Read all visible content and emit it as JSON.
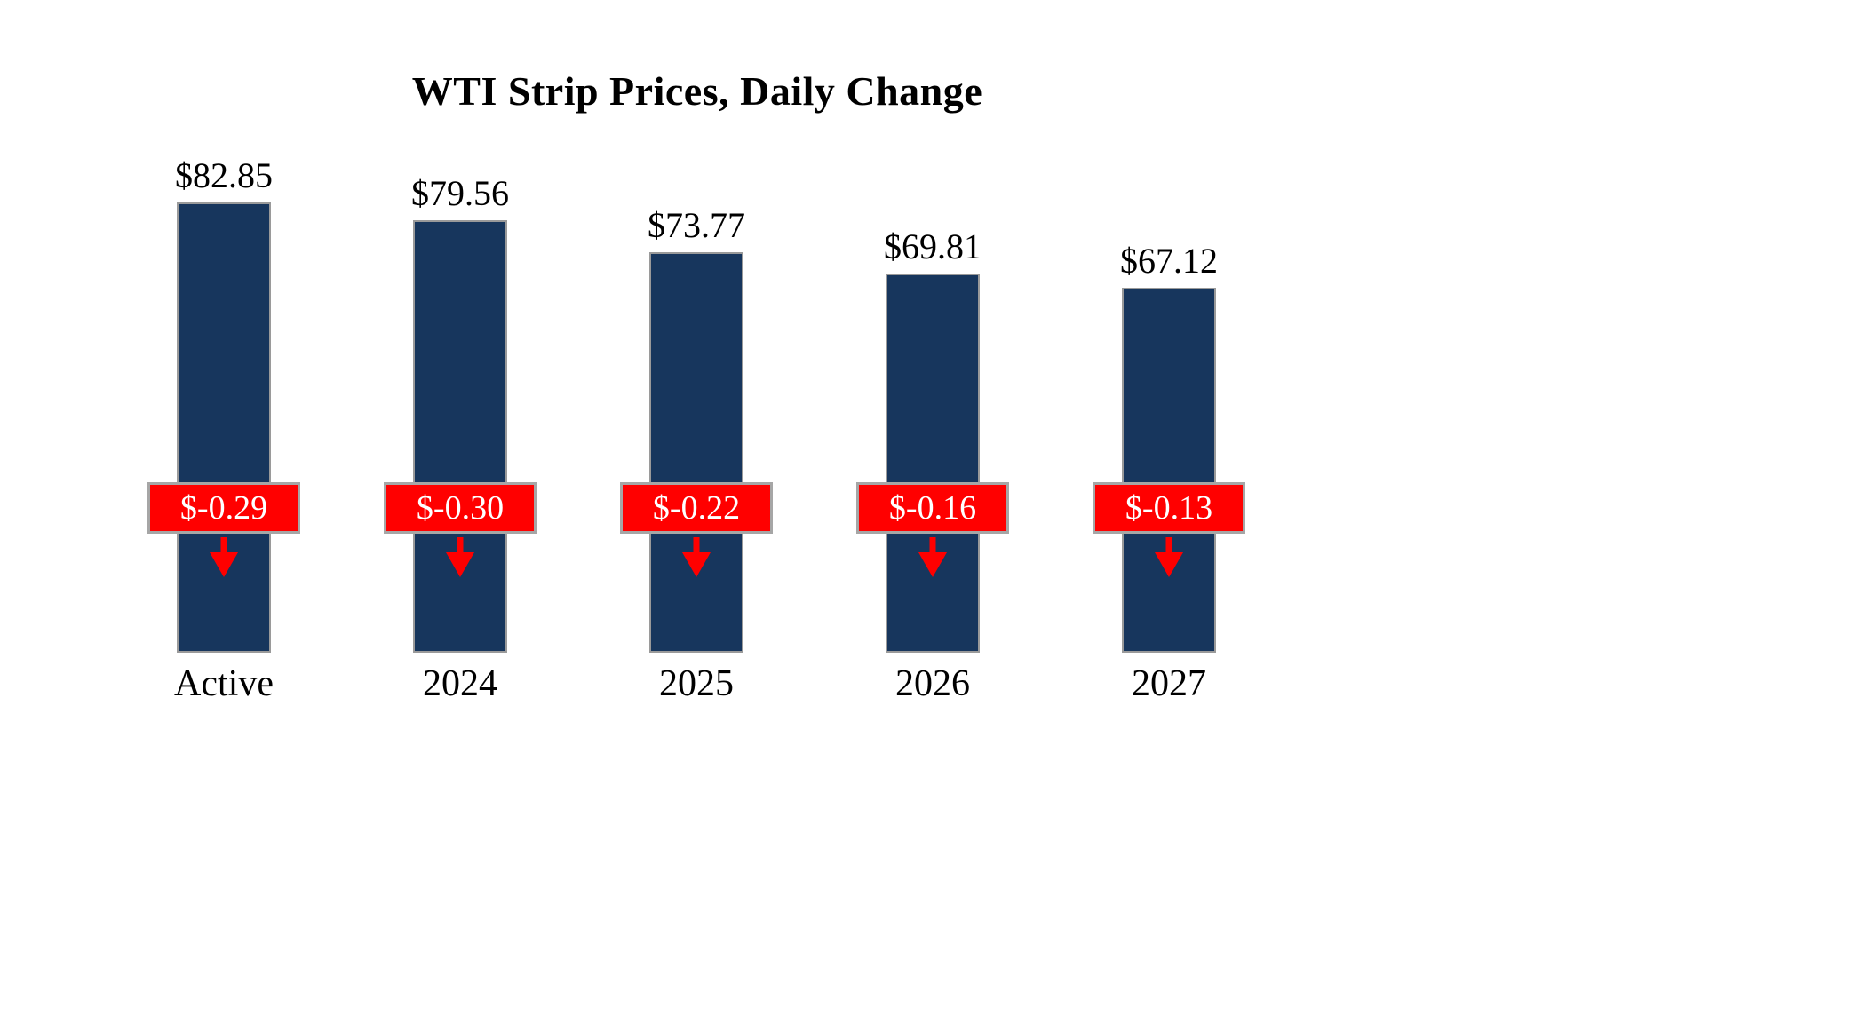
{
  "chart_data": {
    "type": "bar",
    "title": "WTI Strip Prices, Daily Change",
    "categories": [
      "Active",
      "2024",
      "2025",
      "2026",
      "2027"
    ],
    "series": [
      {
        "name": "Strip Price",
        "values": [
          82.85,
          79.56,
          73.77,
          69.81,
          67.12
        ]
      },
      {
        "name": "Daily Change",
        "values": [
          -0.29,
          -0.3,
          -0.22,
          -0.16,
          -0.13
        ]
      }
    ],
    "value_labels": [
      "$82.85",
      "$79.56",
      "$73.77",
      "$69.81",
      "$67.12"
    ],
    "change_labels": [
      "$-0.29",
      "$-0.30",
      "$-0.22",
      "$-0.16",
      "$-0.13"
    ],
    "xlabel": "",
    "ylabel": "",
    "ylim": [
      0,
      82.85
    ],
    "grid": false,
    "legend_position": "none",
    "colors": {
      "bar": "#17365D",
      "change_box": "#FF0000",
      "change_box_border": "#A6A6A6",
      "change_text": "#FFFFFF",
      "arrow": "#FF0000",
      "text": "#000000",
      "background": "#FFFFFF"
    },
    "icons": {
      "change_direction": "down-arrow-icon"
    }
  }
}
